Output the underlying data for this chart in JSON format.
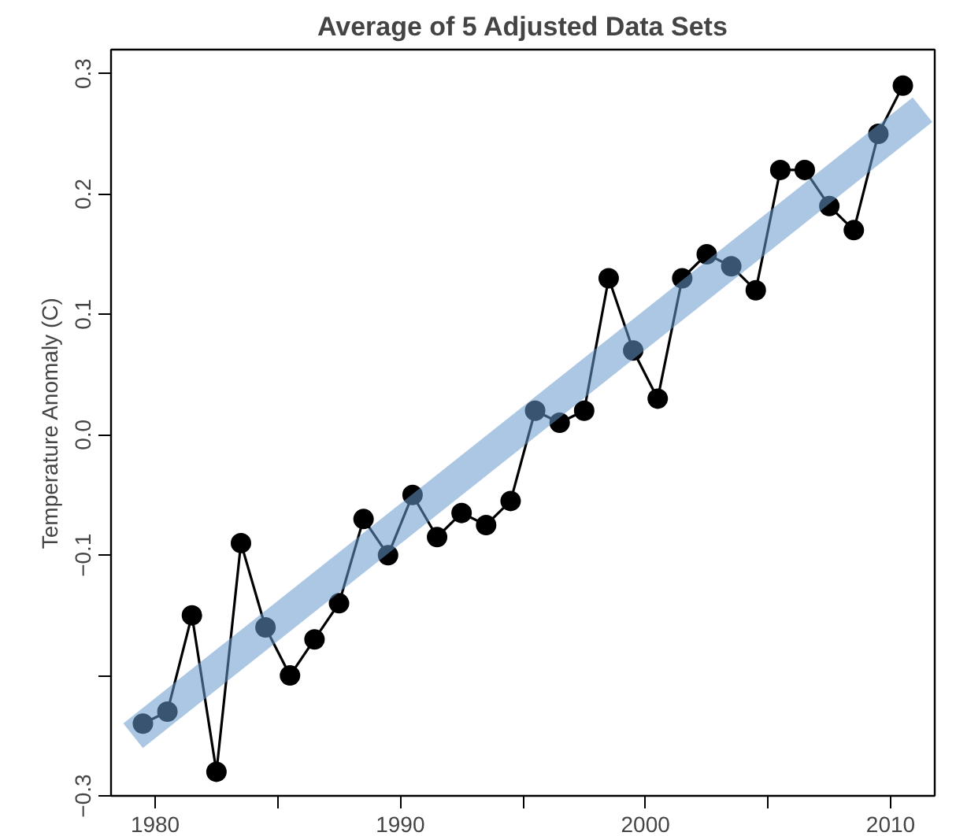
{
  "chart_data": {
    "type": "line",
    "title": "Average of 5 Adjusted Data Sets",
    "ylabel": "Temperature Anomaly (C)",
    "marker": "circle",
    "line_style": "solid",
    "grid": false,
    "x": [
      1979.5,
      1980.5,
      1981.5,
      1982.5,
      1983.5,
      1984.5,
      1985.5,
      1986.5,
      1987.5,
      1988.5,
      1989.5,
      1990.5,
      1991.5,
      1992.5,
      1993.5,
      1994.5,
      1995.5,
      1996.5,
      1997.5,
      1998.5,
      1999.5,
      2000.5,
      2001.5,
      2002.5,
      2003.5,
      2004.5,
      2005.5,
      2006.5,
      2007.5,
      2008.5,
      2009.5,
      2010.5
    ],
    "xlim": [
      1978.2,
      2011.8
    ],
    "xticks": [
      1980,
      {
        "value": 1985,
        "label": null
      },
      1990,
      {
        "value": 1995,
        "label": null
      },
      2000,
      {
        "value": 2005,
        "label": null
      },
      2010
    ],
    "ylim": [
      -0.3,
      0.32
    ],
    "yticks": [
      {
        "value": -0.3,
        "label": "−0.3"
      },
      {
        "value": -0.2,
        "label": null
      },
      {
        "value": -0.1,
        "label": "−0.1"
      },
      {
        "value": 0.0,
        "label": "0.0"
      },
      {
        "value": 0.1,
        "label": "0.1"
      },
      {
        "value": 0.2,
        "label": "0.2"
      },
      {
        "value": 0.3,
        "label": "0.3"
      }
    ],
    "series": [
      {
        "color": "#000000",
        "values": [
          -0.24,
          -0.23,
          -0.15,
          -0.28,
          -0.09,
          -0.16,
          -0.2,
          -0.17,
          -0.14,
          -0.07,
          -0.1,
          -0.05,
          -0.085,
          -0.065,
          -0.075,
          -0.055,
          0.02,
          0.01,
          0.02,
          0.13,
          0.07,
          0.03,
          0.13,
          0.15,
          0.14,
          0.12,
          0.22,
          0.22,
          0.19,
          0.17,
          0.25,
          0.29
        ]
      },
      {
        "color": "#6699cc",
        "marker": "none",
        "x": [
          1979.1,
          2011.3
        ],
        "values": [
          -0.25,
          0.27
        ]
      }
    ]
  }
}
